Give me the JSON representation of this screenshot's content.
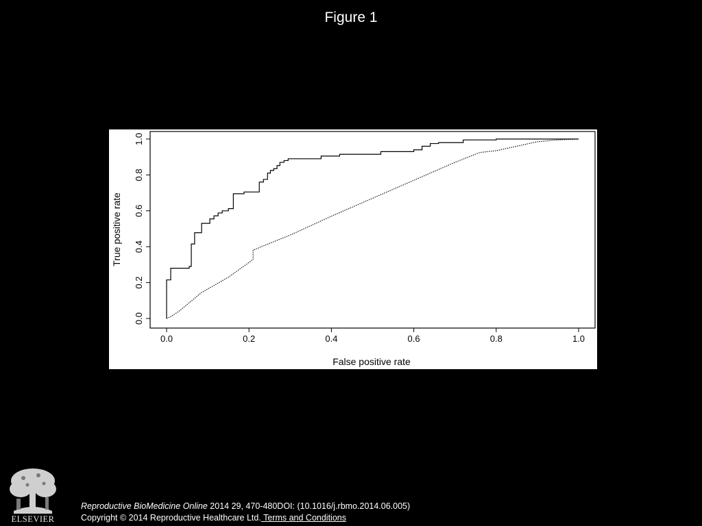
{
  "slide": {
    "title": "Figure 1"
  },
  "citation": {
    "journal": "Reproductive BioMedicine Online",
    "reference": " 2014 29, 470-480DOI: (10.1016/j.rbmo.2014.06.005)",
    "copyright": "Copyright © 2014 Reproductive Healthcare Ltd.",
    "terms_link": " Terms and Conditions"
  },
  "logo": {
    "icon": "elsevier-tree-logo",
    "wordmark": "ELSEVIER"
  },
  "colors": {
    "background": "#000000",
    "panel": "#ffffff",
    "text": "#ffffff",
    "plot_line": "#000000"
  },
  "chart_data": {
    "type": "line",
    "title": "",
    "xlabel": "False positive rate",
    "ylabel": "True positive rate",
    "xlim": [
      0.0,
      1.0
    ],
    "ylim": [
      0.0,
      1.0
    ],
    "xticks": [
      "0.0",
      "0.2",
      "0.4",
      "0.6",
      "0.8",
      "1.0"
    ],
    "yticks": [
      "0.0",
      "0.2",
      "0.4",
      "0.6",
      "0.8",
      "1.0"
    ],
    "grid": false,
    "legend": "none",
    "series": [
      {
        "style": "solid",
        "step": true,
        "points": [
          [
            0.0,
            0.0
          ],
          [
            0.0,
            0.215
          ],
          [
            0.01,
            0.215
          ],
          [
            0.01,
            0.28
          ],
          [
            0.055,
            0.28
          ],
          [
            0.055,
            0.29
          ],
          [
            0.06,
            0.29
          ],
          [
            0.06,
            0.415
          ],
          [
            0.068,
            0.415
          ],
          [
            0.068,
            0.478
          ],
          [
            0.085,
            0.478
          ],
          [
            0.085,
            0.53
          ],
          [
            0.105,
            0.53
          ],
          [
            0.105,
            0.555
          ],
          [
            0.115,
            0.555
          ],
          [
            0.115,
            0.572
          ],
          [
            0.125,
            0.572
          ],
          [
            0.125,
            0.588
          ],
          [
            0.135,
            0.588
          ],
          [
            0.135,
            0.6
          ],
          [
            0.15,
            0.6
          ],
          [
            0.15,
            0.612
          ],
          [
            0.162,
            0.612
          ],
          [
            0.162,
            0.695
          ],
          [
            0.188,
            0.695
          ],
          [
            0.188,
            0.705
          ],
          [
            0.225,
            0.705
          ],
          [
            0.225,
            0.76
          ],
          [
            0.235,
            0.76
          ],
          [
            0.235,
            0.775
          ],
          [
            0.245,
            0.775
          ],
          [
            0.245,
            0.81
          ],
          [
            0.252,
            0.81
          ],
          [
            0.252,
            0.825
          ],
          [
            0.26,
            0.825
          ],
          [
            0.26,
            0.835
          ],
          [
            0.268,
            0.835
          ],
          [
            0.268,
            0.852
          ],
          [
            0.275,
            0.852
          ],
          [
            0.275,
            0.87
          ],
          [
            0.285,
            0.87
          ],
          [
            0.285,
            0.88
          ],
          [
            0.295,
            0.88
          ],
          [
            0.295,
            0.89
          ],
          [
            0.375,
            0.89
          ],
          [
            0.375,
            0.905
          ],
          [
            0.42,
            0.905
          ],
          [
            0.42,
            0.915
          ],
          [
            0.52,
            0.915
          ],
          [
            0.52,
            0.93
          ],
          [
            0.6,
            0.93
          ],
          [
            0.6,
            0.94
          ],
          [
            0.62,
            0.94
          ],
          [
            0.62,
            0.96
          ],
          [
            0.64,
            0.96
          ],
          [
            0.64,
            0.975
          ],
          [
            0.66,
            0.975
          ],
          [
            0.66,
            0.98
          ],
          [
            0.72,
            0.98
          ],
          [
            0.72,
            0.995
          ],
          [
            0.8,
            0.995
          ],
          [
            0.8,
            1.0
          ],
          [
            1.0,
            1.0
          ]
        ]
      },
      {
        "style": "dotted",
        "step": false,
        "points": [
          [
            0.0,
            0.0
          ],
          [
            0.01,
            0.01
          ],
          [
            0.03,
            0.04
          ],
          [
            0.085,
            0.145
          ],
          [
            0.15,
            0.23
          ],
          [
            0.205,
            0.32
          ],
          [
            0.21,
            0.33
          ],
          [
            0.21,
            0.38
          ],
          [
            0.23,
            0.4
          ],
          [
            0.3,
            0.465
          ],
          [
            0.4,
            0.57
          ],
          [
            0.5,
            0.67
          ],
          [
            0.6,
            0.77
          ],
          [
            0.7,
            0.87
          ],
          [
            0.76,
            0.925
          ],
          [
            0.8,
            0.935
          ],
          [
            0.85,
            0.96
          ],
          [
            0.9,
            0.985
          ],
          [
            0.95,
            0.995
          ],
          [
            1.0,
            1.0
          ]
        ]
      }
    ]
  }
}
